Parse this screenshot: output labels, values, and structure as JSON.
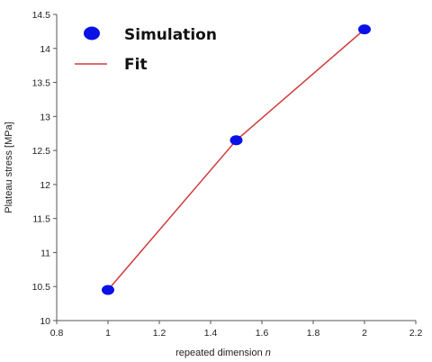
{
  "chart_data": {
    "type": "scatter",
    "xlabel": "repeated dimension",
    "xlabel_var": "n",
    "ylabel": "Plateau stress [MPa]",
    "xlim": [
      0.8,
      2.2
    ],
    "ylim": [
      10,
      14.5
    ],
    "x_ticks": [
      "0.8",
      "1",
      "1.2",
      "1.4",
      "1.6",
      "1.8",
      "2",
      "2.2"
    ],
    "y_ticks": [
      "10",
      "10.5",
      "11",
      "11.5",
      "12",
      "12.5",
      "13",
      "13.5",
      "14",
      "14.5"
    ],
    "grid": false,
    "legend_position": "top-left",
    "series": [
      {
        "name": "Simulation",
        "kind": "markers",
        "color": "#0a10e6",
        "x": [
          1.0,
          1.5,
          2.0
        ],
        "y": [
          10.45,
          12.65,
          14.28
        ]
      },
      {
        "name": "Fit",
        "kind": "line",
        "color": "#d03c3c",
        "x": [
          1.0,
          1.5,
          2.0
        ],
        "y": [
          10.45,
          12.65,
          14.28
        ]
      }
    ]
  }
}
